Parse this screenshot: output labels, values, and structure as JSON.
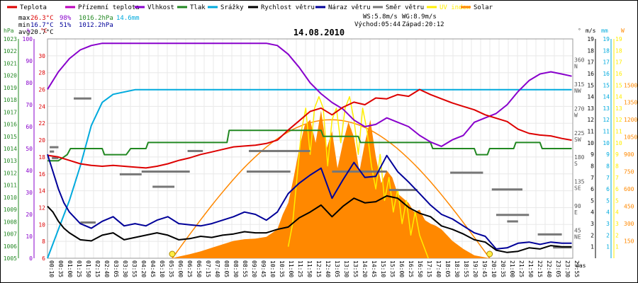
{
  "chart_data": {
    "type": "line",
    "title": "14.08.2010",
    "legend": [
      {
        "name": "Teplota",
        "color": "#dd0000"
      },
      {
        "name": "Přízemní teplota",
        "color": "#bb00bb"
      },
      {
        "name": "Vlhkost",
        "color": "#8800cc"
      },
      {
        "name": "Tlak",
        "color": "#228822"
      },
      {
        "name": "Srážky",
        "color": "#00aadd"
      },
      {
        "name": "Rychlost větru",
        "color": "#000000"
      },
      {
        "name": "Náraz větru",
        "color": "#000099"
      },
      {
        "name": "Směr větru",
        "color": "#777777"
      },
      {
        "name": "UV index",
        "color": "#ffee00"
      },
      {
        "name": "Solar",
        "color": "#ff8800"
      }
    ],
    "stats": {
      "max_label": "max",
      "min_label": "min",
      "avg_label": "avg",
      "max_temp": "26.3°C",
      "max_hum": "98%",
      "max_press": "1016.2hPa",
      "rain_total": "14.6mm",
      "min_temp": "16.7°C",
      "min_hum": "51%",
      "min_press": "1012.2hPa",
      "avg_temp": "20.7°C"
    },
    "info": {
      "ws": "WS:5.8m/s",
      "wg": "WG:8.9m/s",
      "sunrise": "Východ:05:44",
      "sunset": "Západ:20:12"
    },
    "axis_units": {
      "hpa": "hPa",
      "pct": "%",
      "degc": "°C",
      "deg": "°",
      "ms": "m/s",
      "mm": "mm",
      "w": "W",
      "time": "čas"
    },
    "axes": {
      "pressure": {
        "min": 1005,
        "max": 1023,
        "ticks": [
          1005,
          1006,
          1007,
          1008,
          1009,
          1010,
          1011,
          1012,
          1013,
          1014,
          1015,
          1016,
          1017,
          1018,
          1019,
          1020,
          1021,
          1022,
          1023
        ]
      },
      "humidity": {
        "min": 0,
        "max": 100,
        "ticks": [
          0,
          10,
          20,
          30,
          40,
          50,
          60,
          70,
          80,
          90,
          100
        ]
      },
      "temperature": {
        "min": 6,
        "max": 32,
        "ticks": [
          6,
          8,
          10,
          12,
          14,
          16,
          18,
          20,
          22,
          24,
          26,
          28,
          30
        ]
      },
      "direction": {
        "ticks": [
          {
            "deg": 45,
            "label": "45",
            "dir": "NE"
          },
          {
            "deg": 90,
            "label": "90",
            "dir": "E"
          },
          {
            "deg": 135,
            "label": "135",
            "dir": "SE"
          },
          {
            "deg": 180,
            "label": "180",
            "dir": "S"
          },
          {
            "deg": 225,
            "label": "225",
            "dir": "SW"
          },
          {
            "deg": 270,
            "label": "270",
            "dir": "W"
          },
          {
            "deg": 315,
            "label": "315",
            "dir": "NW"
          },
          {
            "deg": 360,
            "label": "360",
            "dir": "N"
          }
        ]
      },
      "wind": {
        "min": 0,
        "max": 19,
        "ticks": [
          1,
          2,
          3,
          4,
          5,
          6,
          7,
          8,
          9,
          10,
          11,
          12,
          13,
          14,
          15,
          16,
          17,
          18,
          19
        ]
      },
      "rain": {
        "min": 0,
        "max": 19,
        "ticks": [
          1,
          2,
          3,
          4,
          5,
          6,
          7,
          8,
          9,
          10,
          11,
          12,
          13,
          14,
          15,
          16,
          17,
          18,
          19
        ]
      },
      "uv": {
        "min": 0,
        "max": 19,
        "ticks": [
          1,
          2,
          3,
          4,
          5,
          6,
          7,
          8,
          9,
          10,
          11,
          12,
          13,
          14,
          15,
          16,
          17,
          18,
          19
        ]
      },
      "solar": {
        "min": 0,
        "max": 1500,
        "ticks": [
          150,
          300,
          450,
          600,
          750,
          900,
          1050,
          1200,
          1350,
          1500
        ]
      }
    },
    "x_ticks": [
      "00:10",
      "00:35",
      "01:00",
      "01:25",
      "01:50",
      "02:15",
      "02:40",
      "03:05",
      "03:30",
      "03:55",
      "04:20",
      "04:45",
      "05:10",
      "05:35",
      "06:00",
      "06:25",
      "06:50",
      "07:15",
      "07:40",
      "08:05",
      "08:30",
      "08:55",
      "09:20",
      "09:45",
      "10:10",
      "10:35",
      "11:00",
      "11:25",
      "11:50",
      "12:15",
      "12:40",
      "13:05",
      "13:30",
      "13:55",
      "14:20",
      "14:45",
      "15:10",
      "15:35",
      "16:00",
      "16:25",
      "16:50",
      "17:15",
      "17:40",
      "18:05",
      "18:30",
      "18:55",
      "19:20",
      "19:45",
      "20:10",
      "20:35",
      "21:00",
      "21:25",
      "21:50",
      "22:15",
      "22:40",
      "23:05",
      "23:30",
      "23:55"
    ],
    "series": {
      "temperature": {
        "x": [
          0,
          0.5,
          1,
          1.5,
          2,
          2.5,
          3,
          3.5,
          4,
          4.5,
          5,
          5.5,
          6,
          6.5,
          7,
          7.5,
          8,
          8.5,
          9,
          9.5,
          10,
          10.5,
          11,
          11.5,
          12,
          12.5,
          13,
          13.5,
          14,
          14.5,
          15,
          15.5,
          16,
          16.5,
          17,
          17.5,
          18,
          18.5,
          19,
          19.5,
          20,
          20.5,
          21,
          21.5,
          22,
          22.5,
          23,
          23.5,
          23.95
        ],
        "y": [
          18.2,
          18.0,
          17.6,
          17.2,
          17.0,
          16.9,
          17.0,
          16.9,
          16.8,
          16.7,
          16.9,
          17.2,
          17.6,
          17.9,
          18.3,
          18.6,
          18.9,
          19.2,
          19.3,
          19.4,
          19.6,
          20.0,
          21.2,
          22.3,
          23.4,
          23.8,
          23.0,
          23.9,
          24.5,
          24.2,
          25.0,
          24.9,
          25.4,
          25.2,
          26.0,
          25.4,
          24.9,
          24.4,
          24.0,
          23.6,
          23.0,
          22.6,
          22.2,
          21.3,
          20.8,
          20.6,
          20.5,
          20.2,
          20.0
        ]
      },
      "humidity": {
        "x": [
          0,
          0.5,
          1,
          1.5,
          2,
          2.5,
          3,
          3.5,
          4,
          4.5,
          5,
          5.5,
          6,
          6.5,
          7,
          7.5,
          8,
          8.5,
          9,
          9.5,
          10,
          10.5,
          11,
          11.5,
          12,
          12.5,
          13,
          13.5,
          14,
          14.5,
          15,
          15.5,
          16,
          16.5,
          17,
          17.5,
          18,
          18.5,
          19,
          19.5,
          20,
          20.5,
          21,
          21.5,
          22,
          22.5,
          23,
          23.5,
          23.95
        ],
        "y": [
          77,
          85,
          91,
          95,
          97,
          98,
          98,
          98,
          98,
          98,
          98,
          98,
          98,
          98,
          98,
          98,
          98,
          98,
          98,
          98,
          98,
          97,
          93,
          87,
          80,
          75,
          71,
          68,
          63,
          60,
          61,
          64,
          62,
          60,
          56,
          53,
          51,
          54,
          56,
          62,
          64,
          66,
          70,
          76,
          81,
          84,
          85,
          84,
          83
        ]
      },
      "pressure": {
        "x": [
          0,
          0.5,
          0.9,
          1.05,
          2.5,
          2.6,
          3.6,
          3.8,
          4.5,
          4.6,
          8.2,
          8.3,
          12.5,
          12.6,
          14.2,
          14.3,
          17.5,
          17.6,
          19.5,
          19.6,
          20.1,
          20.2,
          21.3,
          21.4,
          22.5,
          22.6,
          23.5,
          23.6,
          23.95
        ],
        "y": [
          1013,
          1013,
          1013.5,
          1014,
          1014,
          1013.5,
          1013.5,
          1014,
          1014,
          1014.5,
          1014.5,
          1015.5,
          1015.5,
          1015,
          1015,
          1014.5,
          1014.5,
          1014,
          1014,
          1013.5,
          1013.5,
          1014,
          1014,
          1014.5,
          1014.5,
          1014,
          1014,
          1014,
          1014
        ]
      },
      "rain": {
        "x": [
          0,
          0.5,
          1,
          1.5,
          2,
          2.5,
          3,
          4,
          6,
          8,
          10,
          12,
          14,
          16,
          18,
          20,
          22,
          23.95
        ],
        "y": [
          0,
          2.5,
          5,
          8,
          11.5,
          13.5,
          14.2,
          14.6,
          14.6,
          14.6,
          14.6,
          14.6,
          14.6,
          14.6,
          14.6,
          14.6,
          14.6,
          14.6
        ]
      },
      "wind_speed": {
        "x": [
          0,
          0.25,
          0.5,
          0.75,
          1,
          1.5,
          2,
          2.5,
          3,
          3.5,
          4,
          4.5,
          5,
          5.5,
          6,
          6.5,
          7,
          7.5,
          8,
          8.5,
          9,
          9.5,
          10,
          10.5,
          11,
          11.5,
          12,
          12.5,
          13,
          13.5,
          14,
          14.5,
          15,
          15.5,
          16,
          16.5,
          17,
          17.5,
          18,
          18.5,
          19,
          19.5,
          20,
          20.5,
          21,
          21.5,
          22,
          22.5,
          23,
          23.5,
          23.95
        ],
        "y": [
          4.5,
          4,
          3.2,
          2.6,
          2.2,
          1.6,
          1.5,
          2,
          2.2,
          1.6,
          1.8,
          2.0,
          2.2,
          2.0,
          1.6,
          1.7,
          1.9,
          1.8,
          2.0,
          2.1,
          2.3,
          2.2,
          2.2,
          2.5,
          2.7,
          3.5,
          4,
          4.6,
          3.6,
          4.5,
          5.2,
          4.8,
          4.9,
          5.4,
          5.2,
          4.4,
          3.9,
          3.6,
          2.8,
          2.5,
          2.1,
          1.6,
          1.4,
          0.7,
          0.5,
          0.6,
          0.9,
          0.8,
          1.1,
          1.0,
          1.0
        ]
      },
      "wind_gust": {
        "x": [
          0,
          0.25,
          0.5,
          0.75,
          1,
          1.5,
          2,
          2.5,
          3,
          3.5,
          4,
          4.5,
          5,
          5.5,
          6,
          6.5,
          7,
          7.5,
          8,
          8.5,
          9,
          9.5,
          10,
          10.5,
          11,
          11.5,
          12,
          12.5,
          13,
          13.5,
          14,
          14.5,
          15,
          15.5,
          16,
          16.5,
          17,
          17.5,
          18,
          18.5,
          19,
          19.5,
          20,
          20.5,
          21,
          21.5,
          22,
          22.5,
          23,
          23.5,
          23.95
        ],
        "y": [
          9,
          7.5,
          6,
          4.8,
          4,
          3.0,
          2.6,
          3.2,
          3.6,
          2.8,
          3.0,
          2.8,
          3.3,
          3.6,
          3.0,
          2.9,
          2.8,
          3.0,
          3.3,
          3.6,
          4.0,
          3.8,
          3.3,
          4,
          5.6,
          6.5,
          7.2,
          7.8,
          5.2,
          6.8,
          8.3,
          7.0,
          7.1,
          8.9,
          7.5,
          6.6,
          5.6,
          4.6,
          3.8,
          3.4,
          2.8,
          2.2,
          1.9,
          0.8,
          0.9,
          1.3,
          1.4,
          1.2,
          1.4,
          1.3,
          1.3
        ]
      },
      "solar": {
        "x": [
          5.7,
          6,
          6.5,
          7,
          7.5,
          8,
          8.5,
          9,
          9.5,
          10,
          10.5,
          10.75,
          11,
          11.25,
          11.5,
          11.75,
          12,
          12.25,
          12.5,
          12.75,
          13,
          13.25,
          13.5,
          13.75,
          14,
          14.25,
          14.5,
          14.75,
          15,
          15.25,
          15.5,
          15.75,
          16,
          16.25,
          16.5,
          16.75,
          17,
          17.25,
          17.5,
          17.75,
          18,
          18.5,
          19,
          19.5,
          20.2
        ],
        "y": [
          0,
          15,
          35,
          60,
          90,
          120,
          150,
          165,
          170,
          185,
          250,
          380,
          480,
          700,
          950,
          1150,
          1200,
          1000,
          1280,
          950,
          1100,
          780,
          1000,
          1180,
          1050,
          750,
          1000,
          1200,
          880,
          650,
          760,
          700,
          560,
          520,
          480,
          400,
          420,
          330,
          300,
          280,
          250,
          150,
          80,
          25,
          0
        ]
      },
      "uv": {
        "x": [
          11,
          11.2,
          11.4,
          11.6,
          11.8,
          12,
          12.2,
          12.4,
          12.6,
          12.8,
          13,
          13.2,
          13.4,
          13.6,
          13.8,
          14,
          14.2,
          14.4,
          14.6,
          14.8,
          15,
          15.2,
          15.4,
          15.6,
          15.8,
          16,
          16.2,
          16.4,
          16.6,
          16.8,
          17,
          17.2,
          17.4
        ],
        "y": [
          1,
          3,
          7,
          11,
          13,
          9,
          13,
          14,
          13,
          8,
          12,
          13,
          10,
          13,
          14,
          12,
          9,
          13,
          11,
          8,
          6,
          9,
          5,
          7,
          4,
          6,
          3,
          5,
          2,
          4,
          2,
          1,
          0
        ]
      },
      "wind_dir": [
        {
          "h0": 0.1,
          "h1": 0.5,
          "deg": 205
        },
        {
          "h0": 0.2,
          "h1": 0.5,
          "deg": 185
        },
        {
          "h0": 0.1,
          "h1": 0.3,
          "deg": 197
        },
        {
          "h0": 1.2,
          "h1": 2.0,
          "deg": 295
        },
        {
          "h0": 1.5,
          "h1": 2.2,
          "deg": 66
        },
        {
          "h0": 3.3,
          "h1": 4.3,
          "deg": 155
        },
        {
          "h0": 4.3,
          "h1": 6.5,
          "deg": 160
        },
        {
          "h0": 6.4,
          "h1": 7.1,
          "deg": 198
        },
        {
          "h0": 4.8,
          "h1": 5.8,
          "deg": 132
        },
        {
          "h0": 9.2,
          "h1": 12.0,
          "deg": 198
        },
        {
          "h0": 9.1,
          "h1": 11.1,
          "deg": 160
        },
        {
          "h0": 13.0,
          "h1": 15.5,
          "deg": 160
        },
        {
          "h0": 15.6,
          "h1": 16.4,
          "deg": 126
        },
        {
          "h0": 16.1,
          "h1": 16.9,
          "deg": 126
        },
        {
          "h0": 18.4,
          "h1": 19.9,
          "deg": 158
        },
        {
          "h0": 20.3,
          "h1": 21.7,
          "deg": 127
        },
        {
          "h0": 20.5,
          "h1": 22.0,
          "deg": 80
        },
        {
          "h0": 21.0,
          "h1": 21.5,
          "deg": 68
        },
        {
          "h0": 22.4,
          "h1": 23.5,
          "deg": 44
        },
        {
          "h0": 23.1,
          "h1": 23.95,
          "deg": 20
        }
      ],
      "sun_markers": [
        5.7,
        20.2
      ]
    }
  }
}
